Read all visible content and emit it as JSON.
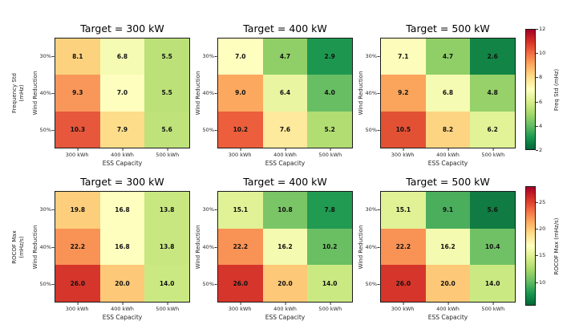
{
  "figure": {
    "background": "#ffffff",
    "annotation_text_color": "#111111",
    "description": "Heatmap sensitivity grid: frequency metrics vs ESS capacity and wind reduction for three target power levels"
  },
  "chart_data": {
    "type": "heatmap",
    "x_categories": [
      "300 kWh",
      "400 kWh",
      "500 kWh"
    ],
    "y_categories": [
      "30%",
      "40%",
      "50%"
    ],
    "xlabel": "ESS Capacity",
    "ylabel": "Wind Reduction",
    "colormap_name": "RdYlGn_r",
    "colormap_stops": [
      "#a50026",
      "#d73027",
      "#f46d43",
      "#fdae61",
      "#fee08b",
      "#ffffbf",
      "#d9ef8b",
      "#a6d96a",
      "#66bd63",
      "#1a9850",
      "#006837"
    ],
    "rows": [
      {
        "metric_label": "Frequency Std\n(mHz)",
        "colorbar": {
          "label": "Freq Std (mHz)",
          "ticks": [
            12,
            10,
            8,
            6,
            4,
            2
          ],
          "vmin": 2,
          "vmax": 12
        },
        "panels": [
          {
            "title": "Target = 300 kW",
            "values": [
              [
                8.1,
                6.8,
                5.5
              ],
              [
                9.3,
                7.0,
                5.5
              ],
              [
                10.3,
                7.9,
                5.6
              ]
            ],
            "labels": [
              [
                "8.1",
                "6.8",
                "5.5"
              ],
              [
                "9.3",
                "7.0",
                "5.5"
              ],
              [
                "10.3",
                "7.9",
                "5.6"
              ]
            ],
            "colors": [
              [
                "#FCD27F",
                "#F5FBB2",
                "#BBE178"
              ],
              [
                "#F9975B",
                "#FEFEBE",
                "#BBE178"
              ],
              [
                "#E6573C",
                "#FDDD89",
                "#BFE27B"
              ]
            ]
          },
          {
            "title": "Target = 400 kW",
            "values": [
              [
                7.0,
                4.7,
                2.9
              ],
              [
                9.0,
                6.4,
                4.0
              ],
              [
                10.2,
                7.6,
                5.2
              ]
            ],
            "labels": [
              [
                "7.0",
                "4.7",
                "2.9"
              ],
              [
                "9.0",
                "6.4",
                "4.0"
              ],
              [
                "10.2",
                "7.6",
                "5.2"
              ]
            ],
            "colors": [
              [
                "#FEFEBE",
                "#90CF67",
                "#1D9750"
              ],
              [
                "#FCA95F",
                "#E9F5A1",
                "#68BE63"
              ],
              [
                "#EC5E3C",
                "#FDEA9D",
                "#B2DD72"
              ]
            ]
          },
          {
            "title": "Target = 500 kW",
            "values": [
              [
                7.1,
                4.7,
                2.6
              ],
              [
                9.2,
                6.8,
                4.8
              ],
              [
                10.5,
                8.2,
                6.2
              ]
            ],
            "labels": [
              [
                "7.1",
                "4.7",
                "2.6"
              ],
              [
                "9.2",
                "6.8",
                "4.8"
              ],
              [
                "10.5",
                "8.2",
                "6.2"
              ]
            ],
            "colors": [
              [
                "#FEFCBB",
                "#90CF67",
                "#128546"
              ],
              [
                "#FAA45C",
                "#F5FBB2",
                "#96D169"
              ],
              [
                "#E35135",
                "#FDD582",
                "#E2F297"
              ]
            ]
          }
        ]
      },
      {
        "metric_label": "ROCOF Max\n(mHz/s)",
        "colorbar": {
          "label": "ROCOF Max (mHz/s)",
          "ticks": [
            25,
            20,
            15,
            10
          ],
          "vmin": 5.6,
          "vmax": 28
        },
        "panels": [
          {
            "title": "Target = 300 kW",
            "values": [
              [
                19.8,
                16.8,
                13.8
              ],
              [
                22.2,
                16.8,
                13.8
              ],
              [
                26.0,
                20.0,
                14.0
              ]
            ],
            "labels": [
              [
                "19.8",
                "16.8",
                "13.8"
              ],
              [
                "22.2",
                "16.8",
                "13.8"
              ],
              [
                "26.0",
                "20.0",
                "14.0"
              ]
            ],
            "colors": [
              [
                "#FDCE7C",
                "#FEFEBE",
                "#C8E780"
              ],
              [
                "#F99355",
                "#FEFEBE",
                "#C8E780"
              ],
              [
                "#D6352B",
                "#FDC978",
                "#CBE982"
              ]
            ]
          },
          {
            "title": "Target = 400 kW",
            "values": [
              [
                15.1,
                10.8,
                7.8
              ],
              [
                22.2,
                16.2,
                10.2
              ],
              [
                26.0,
                20.0,
                14.0
              ]
            ],
            "labels": [
              [
                "15.1",
                "10.8",
                "7.8"
              ],
              [
                "22.2",
                "16.2",
                "10.2"
              ],
              [
                "26.0",
                "20.0",
                "14.0"
              ]
            ],
            "colors": [
              [
                "#E0F295",
                "#7AC565",
                "#219A52"
              ],
              [
                "#F99355",
                "#F4FAAF",
                "#6ABF63"
              ],
              [
                "#D6352B",
                "#FDC978",
                "#CBE982"
              ]
            ]
          },
          {
            "title": "Target = 500 kW",
            "values": [
              [
                15.1,
                9.1,
                5.6
              ],
              [
                22.2,
                16.2,
                10.4
              ],
              [
                26.0,
                20.0,
                14.0
              ]
            ],
            "labels": [
              [
                "15.1",
                "9.1",
                "5.6"
              ],
              [
                "22.2",
                "16.2",
                "10.4"
              ],
              [
                "26.0",
                "20.0",
                "14.0"
              ]
            ],
            "colors": [
              [
                "#E0F295",
                "#4AAE5C",
                "#107C43"
              ],
              [
                "#F99355",
                "#F4FAAF",
                "#70C165"
              ],
              [
                "#D6352B",
                "#FDC978",
                "#CBE982"
              ]
            ]
          }
        ]
      }
    ]
  }
}
